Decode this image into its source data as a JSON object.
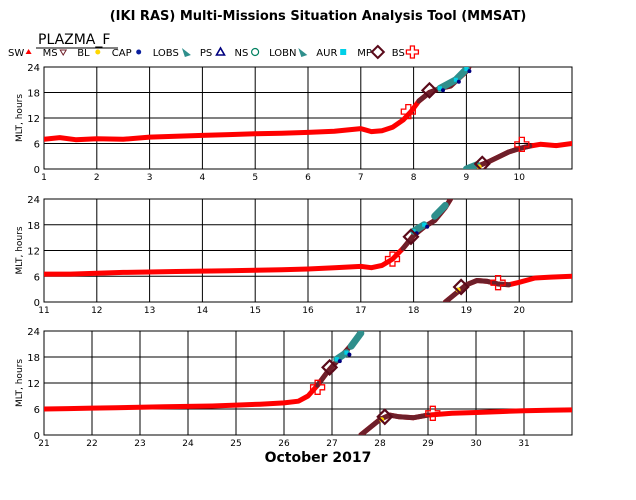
{
  "title": "(IKI RAS) Multi-Missions Situation Analysis Tool (MMSAT)",
  "mission": "PLAZMA_F",
  "xlabel": "October 2017",
  "colors": {
    "sw": "#ff0000",
    "ms": "#6e1f2a",
    "bl": "#ffd700",
    "cap": "#0a1f9e",
    "lobs": "#2f8f8c",
    "ps": "#00007f",
    "ns": "#008060",
    "lobn": "#2f8f8c",
    "aur": "#00d0e8",
    "mp": "#5a0a1a",
    "bs": "#ff0000",
    "grid": "#000000",
    "text": "#000000"
  },
  "legend": [
    {
      "label": "SW",
      "symbol": "triangle-up",
      "color": "#ff0000"
    },
    {
      "label": "MS",
      "symbol": "triangle-down",
      "color": "#6e1f2a"
    },
    {
      "label": "BL",
      "symbol": "dot",
      "color": "#ffd700"
    },
    {
      "label": "CAP",
      "symbol": "dot",
      "color": "#0a1f9e"
    },
    {
      "label": "LOBS",
      "symbol": "wedge",
      "color": "#2f8f8c"
    },
    {
      "label": "PS",
      "symbol": "triangle-open",
      "color": "#00007f"
    },
    {
      "label": "NS",
      "symbol": "circle-open",
      "color": "#008060"
    },
    {
      "label": "LOBN",
      "symbol": "wedge",
      "color": "#2f8f8c"
    },
    {
      "label": "AUR",
      "symbol": "square",
      "color": "#00d0e8"
    },
    {
      "label": "MP",
      "symbol": "diamond-open",
      "color": "#5a0a1a"
    },
    {
      "label": "BS",
      "symbol": "cross-open",
      "color": "#ff0000"
    }
  ],
  "chart_data": [
    {
      "type": "scatter",
      "ylabel": "MLT, hours",
      "xlim": [
        1,
        11
      ],
      "ylim": [
        0,
        24
      ],
      "xticks": [
        "1",
        "2",
        "3",
        "4",
        "5",
        "6",
        "7",
        "8",
        "9",
        "10"
      ],
      "yticks": [
        "0",
        "6",
        "12",
        "18",
        "24"
      ],
      "orbit": [
        {
          "x": 1.0,
          "y": 7.0
        },
        {
          "x": 1.3,
          "y": 7.4
        },
        {
          "x": 1.6,
          "y": 6.9
        },
        {
          "x": 2.0,
          "y": 7.1
        },
        {
          "x": 2.5,
          "y": 7.0
        },
        {
          "x": 3.0,
          "y": 7.5
        },
        {
          "x": 3.5,
          "y": 7.7
        },
        {
          "x": 4.0,
          "y": 7.9
        },
        {
          "x": 4.5,
          "y": 8.1
        },
        {
          "x": 5.0,
          "y": 8.3
        },
        {
          "x": 5.5,
          "y": 8.4
        },
        {
          "x": 6.0,
          "y": 8.6
        },
        {
          "x": 6.5,
          "y": 8.9
        },
        {
          "x": 7.0,
          "y": 9.5
        },
        {
          "x": 7.2,
          "y": 8.8
        },
        {
          "x": 7.4,
          "y": 9.0
        },
        {
          "x": 7.6,
          "y": 9.8
        },
        {
          "x": 7.8,
          "y": 11.5
        },
        {
          "x": 7.95,
          "y": 13.5
        },
        {
          "x": 8.1,
          "y": 16.0
        },
        {
          "x": 8.3,
          "y": 18.0
        },
        {
          "x": 8.5,
          "y": 19.0
        },
        {
          "x": 8.7,
          "y": 19.5
        },
        {
          "x": 9.0,
          "y": 23.0
        },
        {
          "x": 9.05,
          "y": 24.0
        }
      ],
      "orbit2": [
        {
          "x": 9.05,
          "y": 0.0
        },
        {
          "x": 9.2,
          "y": 0.6
        },
        {
          "x": 9.4,
          "y": 1.6
        },
        {
          "x": 9.6,
          "y": 2.8
        },
        {
          "x": 9.8,
          "y": 4.0
        },
        {
          "x": 10.0,
          "y": 4.8
        },
        {
          "x": 10.2,
          "y": 5.4
        },
        {
          "x": 10.4,
          "y": 5.8
        },
        {
          "x": 10.7,
          "y": 5.5
        },
        {
          "x": 11.0,
          "y": 6.0
        }
      ],
      "mp_markers": [
        {
          "x": 8.3,
          "y": 18.5
        },
        {
          "x": 9.3,
          "y": 1.2
        }
      ],
      "bs_markers": [
        {
          "x": 7.9,
          "y": 13.5
        },
        {
          "x": 10.05,
          "y": 5.8
        }
      ],
      "aur_band": [
        {
          "x": 8.5,
          "y": 19.0
        },
        {
          "x": 8.8,
          "y": 21.0
        },
        {
          "x": 9.0,
          "y": 23.5
        }
      ],
      "lobs_band": [
        {
          "x": 9.0,
          "y": 0.0
        },
        {
          "x": 9.2,
          "y": 1.0
        }
      ]
    },
    {
      "type": "scatter",
      "ylabel": "MLT, hours",
      "xlim": [
        11,
        21
      ],
      "ylim": [
        0,
        24
      ],
      "xticks": [
        "11",
        "12",
        "13",
        "14",
        "15",
        "16",
        "17",
        "18",
        "19",
        "20"
      ],
      "yticks": [
        "0",
        "6",
        "12",
        "18",
        "24"
      ],
      "orbit": [
        {
          "x": 11.0,
          "y": 6.5
        },
        {
          "x": 11.5,
          "y": 6.5
        },
        {
          "x": 12.0,
          "y": 6.7
        },
        {
          "x": 12.5,
          "y": 6.9
        },
        {
          "x": 13.0,
          "y": 7.0
        },
        {
          "x": 13.5,
          "y": 7.1
        },
        {
          "x": 14.0,
          "y": 7.2
        },
        {
          "x": 14.5,
          "y": 7.3
        },
        {
          "x": 15.0,
          "y": 7.4
        },
        {
          "x": 15.5,
          "y": 7.5
        },
        {
          "x": 16.0,
          "y": 7.7
        },
        {
          "x": 16.5,
          "y": 8.0
        },
        {
          "x": 17.0,
          "y": 8.3
        },
        {
          "x": 17.2,
          "y": 8.0
        },
        {
          "x": 17.4,
          "y": 8.5
        },
        {
          "x": 17.6,
          "y": 10.0
        },
        {
          "x": 17.8,
          "y": 12.5
        },
        {
          "x": 18.0,
          "y": 15.5
        },
        {
          "x": 18.2,
          "y": 17.5
        },
        {
          "x": 18.4,
          "y": 19.0
        },
        {
          "x": 18.6,
          "y": 22.0
        },
        {
          "x": 18.7,
          "y": 24.0
        }
      ],
      "orbit2": [
        {
          "x": 18.6,
          "y": 0.0
        },
        {
          "x": 18.8,
          "y": 2.0
        },
        {
          "x": 19.0,
          "y": 4.0
        },
        {
          "x": 19.2,
          "y": 5.0
        },
        {
          "x": 19.4,
          "y": 4.8
        },
        {
          "x": 19.6,
          "y": 4.2
        },
        {
          "x": 19.8,
          "y": 4.0
        },
        {
          "x": 20.0,
          "y": 4.6
        },
        {
          "x": 20.3,
          "y": 5.6
        },
        {
          "x": 20.6,
          "y": 5.8
        },
        {
          "x": 21.0,
          "y": 6.0
        }
      ],
      "mp_markers": [
        {
          "x": 17.95,
          "y": 15.2
        },
        {
          "x": 18.9,
          "y": 3.5
        }
      ],
      "bs_markers": [
        {
          "x": 17.6,
          "y": 10.0
        },
        {
          "x": 19.6,
          "y": 4.5
        }
      ],
      "aur_band": [
        {
          "x": 18.0,
          "y": 16.5
        },
        {
          "x": 18.2,
          "y": 18.0
        }
      ],
      "lobs_band": [
        {
          "x": 18.4,
          "y": 20.0
        },
        {
          "x": 18.6,
          "y": 22.5
        }
      ]
    },
    {
      "type": "scatter",
      "ylabel": "MLT, hours",
      "xlim": [
        21,
        32
      ],
      "ylim": [
        0,
        24
      ],
      "xticks": [
        "21",
        "22",
        "23",
        "24",
        "25",
        "26",
        "27",
        "28",
        "29",
        "30",
        "31"
      ],
      "yticks": [
        "0",
        "6",
        "12",
        "18",
        "24"
      ],
      "orbit": [
        {
          "x": 21.0,
          "y": 6.0
        },
        {
          "x": 21.5,
          "y": 6.1
        },
        {
          "x": 22.0,
          "y": 6.2
        },
        {
          "x": 22.5,
          "y": 6.3
        },
        {
          "x": 23.0,
          "y": 6.4
        },
        {
          "x": 23.5,
          "y": 6.5
        },
        {
          "x": 24.0,
          "y": 6.6
        },
        {
          "x": 24.5,
          "y": 6.7
        },
        {
          "x": 25.0,
          "y": 6.9
        },
        {
          "x": 25.5,
          "y": 7.1
        },
        {
          "x": 26.0,
          "y": 7.4
        },
        {
          "x": 26.3,
          "y": 7.8
        },
        {
          "x": 26.5,
          "y": 9.0
        },
        {
          "x": 26.7,
          "y": 11.5
        },
        {
          "x": 26.9,
          "y": 14.5
        },
        {
          "x": 27.1,
          "y": 17.0
        },
        {
          "x": 27.3,
          "y": 19.5
        },
        {
          "x": 27.5,
          "y": 22.0
        },
        {
          "x": 27.6,
          "y": 24.0
        }
      ],
      "orbit2": [
        {
          "x": 27.6,
          "y": 0.0
        },
        {
          "x": 27.8,
          "y": 1.8
        },
        {
          "x": 28.0,
          "y": 3.6
        },
        {
          "x": 28.2,
          "y": 4.6
        },
        {
          "x": 28.4,
          "y": 4.2
        },
        {
          "x": 28.7,
          "y": 4.0
        },
        {
          "x": 29.0,
          "y": 4.6
        },
        {
          "x": 29.5,
          "y": 5.0
        },
        {
          "x": 30.0,
          "y": 5.2
        },
        {
          "x": 30.5,
          "y": 5.4
        },
        {
          "x": 31.0,
          "y": 5.6
        },
        {
          "x": 31.5,
          "y": 5.7
        },
        {
          "x": 32.0,
          "y": 5.8
        }
      ],
      "mp_markers": [
        {
          "x": 26.95,
          "y": 15.6
        },
        {
          "x": 28.1,
          "y": 4.2
        }
      ],
      "bs_markers": [
        {
          "x": 26.7,
          "y": 11.0
        },
        {
          "x": 29.1,
          "y": 5.0
        }
      ],
      "aur_band": [
        {
          "x": 27.1,
          "y": 17.5
        },
        {
          "x": 27.3,
          "y": 19.0
        }
      ],
      "lobs_band": [
        {
          "x": 27.4,
          "y": 20.5
        },
        {
          "x": 27.6,
          "y": 23.5
        }
      ]
    }
  ]
}
